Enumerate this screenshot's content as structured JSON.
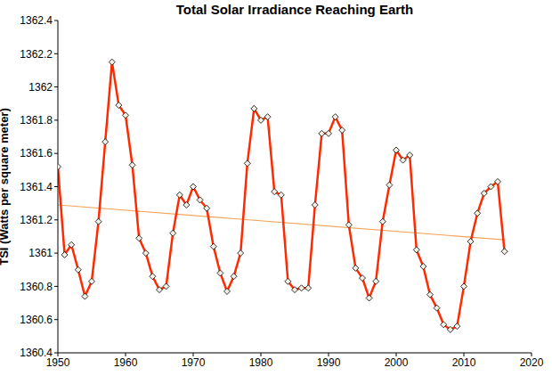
{
  "chart_data": {
    "type": "line",
    "title": "Total Solar Irradiance Reaching Earth",
    "y_label": "TSI (Watts per square meter)",
    "x": [
      1950,
      1951,
      1952,
      1953,
      1954,
      1955,
      1956,
      1957,
      1958,
      1959,
      1960,
      1961,
      1962,
      1963,
      1964,
      1965,
      1966,
      1967,
      1968,
      1969,
      1970,
      1971,
      1972,
      1973,
      1974,
      1975,
      1976,
      1977,
      1978,
      1979,
      1980,
      1981,
      1982,
      1983,
      1984,
      1985,
      1986,
      1987,
      1988,
      1989,
      1990,
      1991,
      1992,
      1993,
      1994,
      1995,
      1996,
      1997,
      1998,
      1999,
      2000,
      2001,
      2002,
      2003,
      2004,
      2005,
      2006,
      2007,
      2008,
      2009,
      2010,
      2011,
      2012,
      2013,
      2014,
      2015,
      2016
    ],
    "values": [
      1361.52,
      1360.99,
      1361.05,
      1360.9,
      1360.74,
      1360.83,
      1361.19,
      1361.67,
      1362.15,
      1361.89,
      1361.83,
      1361.53,
      1361.09,
      1361.0,
      1360.86,
      1360.78,
      1360.8,
      1361.12,
      1361.35,
      1361.29,
      1361.4,
      1361.32,
      1361.27,
      1361.04,
      1360.88,
      1360.77,
      1360.86,
      1361.0,
      1361.54,
      1361.87,
      1361.8,
      1361.82,
      1361.37,
      1361.35,
      1360.83,
      1360.78,
      1360.79,
      1360.79,
      1361.29,
      1361.72,
      1361.72,
      1361.82,
      1361.74,
      1361.17,
      1360.91,
      1360.85,
      1360.73,
      1360.83,
      1361.19,
      1361.41,
      1361.62,
      1361.56,
      1361.59,
      1361.02,
      1360.92,
      1360.75,
      1360.67,
      1360.57,
      1360.54,
      1360.56,
      1360.8,
      1361.07,
      1361.24,
      1361.36,
      1361.4,
      1361.43,
      1361.01
    ],
    "color": "#ff2a00",
    "marker": "diamond",
    "trend_line": {
      "x": [
        1950,
        2016
      ],
      "values": [
        1361.29,
        1361.08
      ],
      "color": "#f5a35c"
    },
    "xlim": [
      1950,
      2020
    ],
    "xticks": [
      1950,
      1960,
      1970,
      1980,
      1990,
      2000,
      2010,
      2020
    ],
    "ylim": [
      1360.4,
      1362.4
    ],
    "yticks": [
      1360.4,
      1360.6,
      1360.8,
      1361,
      1361.2,
      1361.4,
      1361.6,
      1361.8,
      1362,
      1362.2,
      1362.4
    ],
    "grid": false
  }
}
